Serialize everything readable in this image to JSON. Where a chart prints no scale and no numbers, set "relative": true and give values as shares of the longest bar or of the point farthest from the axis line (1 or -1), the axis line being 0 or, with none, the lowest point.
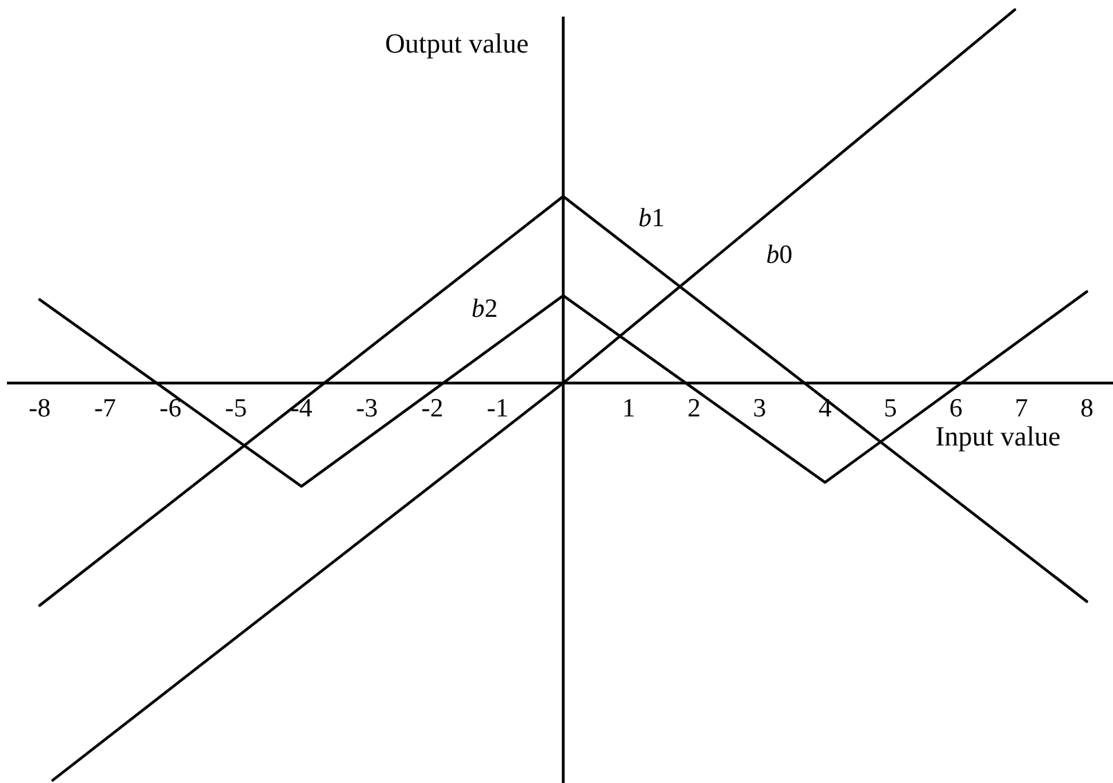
{
  "chart_data": {
    "type": "line",
    "relative": true,
    "xlabel": "Input value",
    "ylabel": "Output value",
    "xlim": [
      -8.5,
      8.4
    ],
    "xticks": [
      -8,
      -7,
      -6,
      -5,
      -4,
      -3,
      -2,
      -1,
      1,
      2,
      3,
      4,
      5,
      6,
      7,
      8
    ],
    "series": [
      {
        "name": "b0",
        "color": "#000000",
        "x": [
          -7.8,
          0,
          6.9
        ],
        "values": [
          -1,
          0,
          0.94
        ]
      },
      {
        "name": "b1",
        "color": "#000000",
        "x": [
          -8,
          0,
          8
        ],
        "values": [
          -0.56,
          0.47,
          -0.55
        ]
      },
      {
        "name": "b2",
        "color": "#000000",
        "x": [
          -8,
          -4,
          0,
          4,
          8
        ],
        "values": [
          0.21,
          -0.26,
          0.22,
          -0.25,
          0.23
        ]
      }
    ]
  }
}
